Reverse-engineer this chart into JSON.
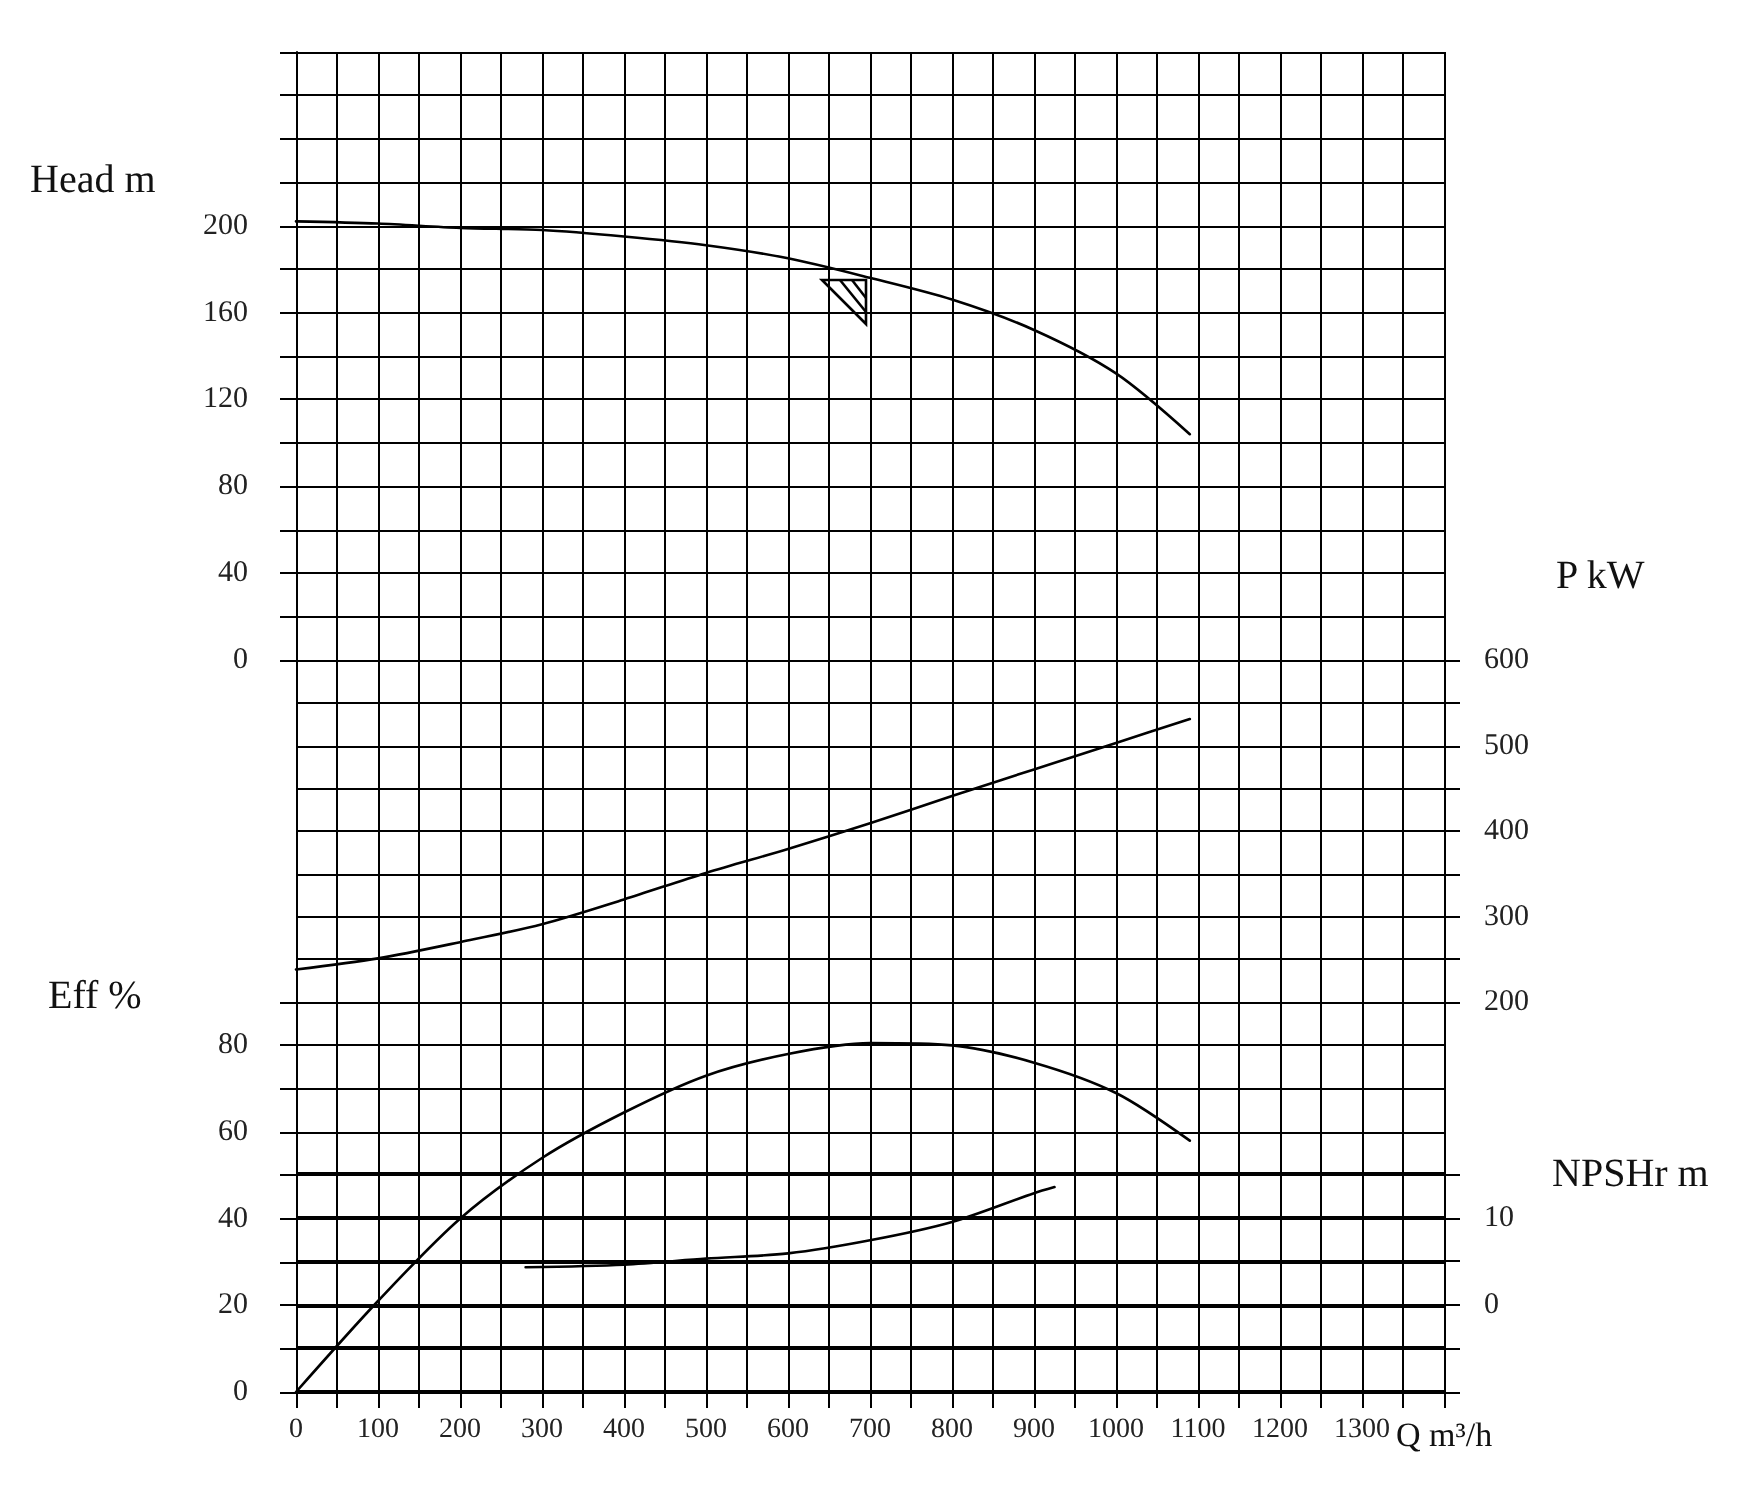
{
  "chart_data": [
    {
      "type": "line",
      "ylabel": "Head m",
      "x": [
        0,
        100,
        200,
        300,
        400,
        500,
        600,
        700,
        800,
        900,
        1000,
        1090
      ],
      "series": [
        {
          "color": "#000000",
          "values": [
            202,
            201,
            199,
            198,
            195,
            191,
            185,
            176,
            166,
            152,
            132,
            104
          ]
        }
      ],
      "xlim": [
        0,
        1400
      ],
      "xticks": [
        0,
        {
          "value": 50,
          "label": null
        },
        {
          "value": 100,
          "label": null
        },
        {
          "value": 150,
          "label": null
        },
        {
          "value": 200,
          "label": null
        },
        {
          "value": 250,
          "label": null
        },
        {
          "value": 300,
          "label": null
        },
        {
          "value": 350,
          "label": null
        },
        {
          "value": 400,
          "label": null
        },
        {
          "value": 450,
          "label": null
        },
        {
          "value": 500,
          "label": null
        },
        {
          "value": 550,
          "label": null
        },
        {
          "value": 600,
          "label": null
        },
        {
          "value": 650,
          "label": null
        },
        {
          "value": 700,
          "label": null
        },
        {
          "value": 750,
          "label": null
        },
        {
          "value": 800,
          "label": null
        },
        {
          "value": 850,
          "label": null
        },
        {
          "value": 900,
          "label": null
        },
        {
          "value": 950,
          "label": null
        },
        {
          "value": 1000,
          "label": null
        },
        {
          "value": 1050,
          "label": null
        },
        {
          "value": 1100,
          "label": null
        },
        {
          "value": 1150,
          "label": null
        },
        {
          "value": 1200,
          "label": null
        },
        {
          "value": 1250,
          "label": null
        },
        {
          "value": 1300,
          "label": null
        },
        {
          "value": 1350,
          "label": null
        },
        {
          "value": 1400,
          "label": null
        }
      ],
      "ylim": [
        0,
        280
      ],
      "yticks": [
        0,
        {
          "value": 20,
          "label": null
        },
        40,
        {
          "value": 60,
          "label": null
        },
        80,
        {
          "value": 100,
          "label": null
        },
        120,
        {
          "value": 140,
          "label": null
        },
        160,
        {
          "value": 180,
          "label": null
        },
        200,
        {
          "value": 220,
          "label": null
        },
        {
          "value": 240,
          "label": null
        },
        {
          "value": 260,
          "label": null
        },
        {
          "value": 280,
          "label": null
        }
      ],
      "tick_labels": "y",
      "grid": true,
      "marker": "none",
      "line_style": "solid"
    },
    {
      "type": "line",
      "y2label": "P kW",
      "x": [
        0,
        100,
        200,
        300,
        400,
        500,
        600,
        700,
        800,
        900,
        1000,
        1090
      ],
      "series": [
        {
          "color": "#000000",
          "axis": "y2",
          "values": [
            238,
            251,
            270,
            291,
            320,
            351,
            379,
            409,
            441,
            472,
            503,
            531
          ]
        }
      ],
      "xlim": [
        0,
        1400
      ],
      "xticks": [
        0,
        {
          "value": 50,
          "label": null
        },
        {
          "value": 100,
          "label": null
        },
        {
          "value": 150,
          "label": null
        },
        {
          "value": 200,
          "label": null
        },
        {
          "value": 250,
          "label": null
        },
        {
          "value": 300,
          "label": null
        },
        {
          "value": 350,
          "label": null
        },
        {
          "value": 400,
          "label": null
        },
        {
          "value": 450,
          "label": null
        },
        {
          "value": 500,
          "label": null
        },
        {
          "value": 550,
          "label": null
        },
        {
          "value": 600,
          "label": null
        },
        {
          "value": 650,
          "label": null
        },
        {
          "value": 700,
          "label": null
        },
        {
          "value": 750,
          "label": null
        },
        {
          "value": 800,
          "label": null
        },
        {
          "value": 850,
          "label": null
        },
        {
          "value": 900,
          "label": null
        },
        {
          "value": 950,
          "label": null
        },
        {
          "value": 1000,
          "label": null
        },
        {
          "value": 1050,
          "label": null
        },
        {
          "value": 1100,
          "label": null
        },
        {
          "value": 1150,
          "label": null
        },
        {
          "value": 1200,
          "label": null
        },
        {
          "value": 1250,
          "label": null
        },
        {
          "value": 1300,
          "label": null
        },
        {
          "value": 1350,
          "label": null
        },
        {
          "value": 1400,
          "label": null
        }
      ],
      "y2lim": [
        200,
        600
      ],
      "y2ticks": [
        200,
        {
          "value": 250,
          "label": null
        },
        300,
        {
          "value": 350,
          "label": null
        },
        400,
        {
          "value": 450,
          "label": null
        },
        500,
        {
          "value": 550,
          "label": null
        },
        600
      ],
      "tick_labels": "y",
      "grid": true,
      "marker": "none",
      "line_style": "solid"
    },
    {
      "type": "line",
      "ylabel": "Eff %",
      "xlabel": "Q m³/h",
      "x": [
        0,
        100,
        200,
        300,
        400,
        500,
        600,
        700,
        800,
        900,
        1000,
        1090
      ],
      "series": [
        {
          "color": "#000000",
          "values": [
            0,
            21,
            40,
            54,
            64.5,
            73,
            78,
            80.5,
            80,
            76,
            69,
            58
          ]
        }
      ],
      "xlim": [
        0,
        1400
      ],
      "xticks": [
        0,
        {
          "value": 50,
          "label": null
        },
        100,
        {
          "value": 150,
          "label": null
        },
        200,
        {
          "value": 250,
          "label": null
        },
        300,
        {
          "value": 350,
          "label": null
        },
        400,
        {
          "value": 450,
          "label": null
        },
        500,
        {
          "value": 550,
          "label": null
        },
        600,
        {
          "value": 650,
          "label": null
        },
        700,
        {
          "value": 750,
          "label": null
        },
        800,
        {
          "value": 850,
          "label": null
        },
        900,
        {
          "value": 950,
          "label": null
        },
        1000,
        {
          "value": 1050,
          "label": null
        },
        1100,
        {
          "value": 1150,
          "label": null
        },
        1200,
        {
          "value": 1250,
          "label": null
        },
        1300,
        {
          "value": 1350,
          "label": null
        },
        {
          "value": 1400,
          "label": null
        }
      ],
      "ylim": [
        0,
        90
      ],
      "yticks": [
        0,
        {
          "value": 10,
          "label": null
        },
        20,
        {
          "value": 30,
          "label": null
        },
        40,
        {
          "value": 50,
          "label": null
        },
        60,
        {
          "value": 70,
          "label": null
        },
        80,
        {
          "value": 90,
          "label": null
        }
      ],
      "grid": true,
      "marker": "none",
      "line_style": "solid"
    },
    {
      "type": "line",
      "y2label": "NPSHr m",
      "series": [
        {
          "color": "#000000",
          "axis": "y2",
          "x": [
            280,
            400,
            500,
            600,
            700,
            800,
            900,
            925
          ],
          "values": [
            4.3,
            4.6,
            5.3,
            5.9,
            7.4,
            9.5,
            12.8,
            13.5
          ]
        }
      ],
      "xlim": [
        0,
        1400
      ],
      "xticks": [
        0,
        {
          "value": 50,
          "label": null
        },
        {
          "value": 100,
          "label": null
        },
        {
          "value": 150,
          "label": null
        },
        {
          "value": 200,
          "label": null
        },
        {
          "value": 250,
          "label": null
        },
        {
          "value": 300,
          "label": null
        },
        {
          "value": 350,
          "label": null
        },
        {
          "value": 400,
          "label": null
        },
        {
          "value": 450,
          "label": null
        },
        {
          "value": 500,
          "label": null
        },
        {
          "value": 550,
          "label": null
        },
        {
          "value": 600,
          "label": null
        },
        {
          "value": 650,
          "label": null
        },
        {
          "value": 700,
          "label": null
        },
        {
          "value": 750,
          "label": null
        },
        {
          "value": 800,
          "label": null
        },
        {
          "value": 850,
          "label": null
        },
        {
          "value": 900,
          "label": null
        },
        {
          "value": 950,
          "label": null
        },
        {
          "value": 1000,
          "label": null
        },
        {
          "value": 1050,
          "label": null
        },
        {
          "value": 1100,
          "label": null
        },
        {
          "value": 1150,
          "label": null
        },
        {
          "value": 1200,
          "label": null
        },
        {
          "value": 1250,
          "label": null
        },
        {
          "value": 1300,
          "label": null
        },
        {
          "value": 1350,
          "label": null
        },
        {
          "value": 1400,
          "label": null
        }
      ],
      "y2lim": [
        -10,
        15
      ],
      "y2ticks": [
        {
          "value": -10,
          "label": null
        },
        {
          "value": -5,
          "label": null
        },
        0,
        {
          "value": 5,
          "label": null
        },
        10,
        {
          "value": 15,
          "label": null
        }
      ],
      "tick_labels": "y",
      "grid": "y",
      "marker": "none",
      "line_style": "solid"
    }
  ]
}
